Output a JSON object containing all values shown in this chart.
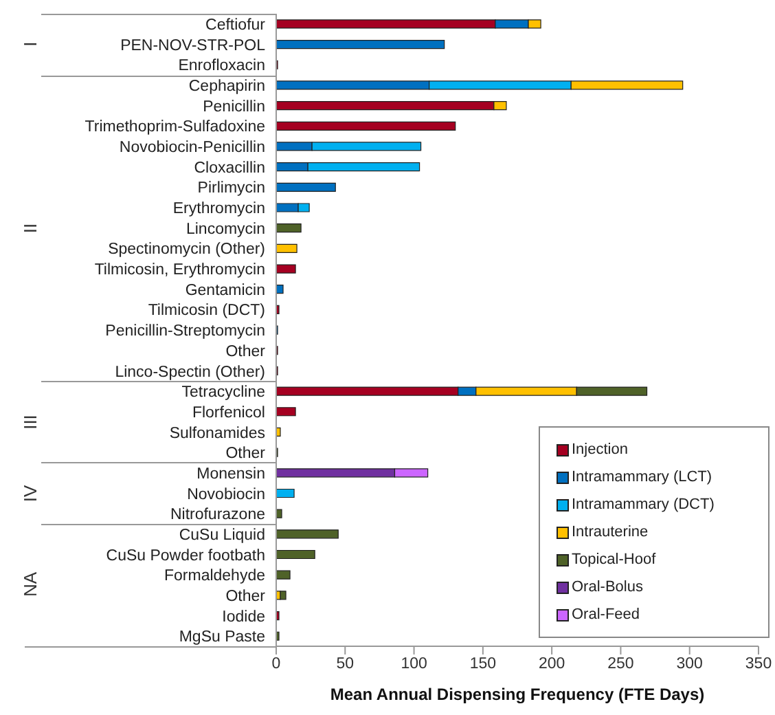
{
  "chart_data": {
    "type": "bar",
    "orientation": "horizontal",
    "stacked": true,
    "xlabel": "Mean Annual Dispensing Frequency (FTE Days)",
    "categories": [
      "Ceftiofur",
      "PEN-NOV-STR-POL",
      "Enrofloxacin",
      "Cephapirin",
      "Penicillin",
      "Trimethoprim-Sulfadoxine",
      "Novobiocin-Penicillin",
      "Cloxacillin",
      "Pirlimycin",
      "Erythromycin",
      "Lincomycin",
      "Spectinomycin (Other)",
      "Tilmicosin, Erythromycin",
      "Gentamicin",
      "Tilmicosin (DCT)",
      "Penicillin-Streptomycin",
      "Other",
      "Linco-Spectin (Other)",
      "Tetracycline",
      "Florfenicol",
      "Sulfonamides",
      "Other",
      "Monensin",
      "Novobiocin",
      "Nitrofurazone",
      "CuSu Liquid",
      "CuSu Powder footbath",
      "Formaldehyde",
      "Other",
      "Iodide",
      "MgSu Paste"
    ],
    "series": [
      {
        "name": "Injection",
        "color": "#a50021",
        "values": [
          159,
          null,
          1,
          null,
          158,
          130,
          null,
          null,
          null,
          null,
          null,
          null,
          14,
          null,
          2,
          null,
          1,
          1,
          132,
          14,
          null,
          null,
          null,
          null,
          null,
          null,
          null,
          null,
          null,
          2,
          null
        ]
      },
      {
        "name": "Intramammary (LCT)",
        "color": "#0070c0",
        "values": [
          24,
          122,
          null,
          111,
          null,
          null,
          26,
          23,
          43,
          16,
          null,
          null,
          null,
          5,
          null,
          1,
          null,
          null,
          13,
          null,
          null,
          null,
          null,
          null,
          null,
          null,
          null,
          null,
          null,
          null,
          null
        ]
      },
      {
        "name": "Intramammary (DCT)",
        "color": "#00b0f0",
        "values": [
          null,
          null,
          null,
          103,
          null,
          null,
          79,
          81,
          null,
          8,
          null,
          null,
          null,
          null,
          null,
          null,
          null,
          null,
          null,
          null,
          null,
          null,
          null,
          13,
          null,
          null,
          null,
          null,
          null,
          null,
          null
        ]
      },
      {
        "name": "Intrauterine",
        "color": "#ffc000",
        "values": [
          9,
          null,
          null,
          81,
          9,
          null,
          null,
          null,
          null,
          null,
          null,
          15,
          null,
          null,
          null,
          null,
          null,
          null,
          73,
          null,
          3,
          null,
          null,
          null,
          null,
          null,
          null,
          null,
          3,
          null,
          null
        ]
      },
      {
        "name": "Topical-Hoof",
        "color": "#4f6228",
        "values": [
          null,
          null,
          null,
          null,
          null,
          null,
          null,
          null,
          null,
          null,
          18,
          null,
          null,
          null,
          null,
          null,
          null,
          null,
          51,
          null,
          null,
          1,
          null,
          null,
          4,
          45,
          28,
          10,
          4,
          null,
          2
        ]
      },
      {
        "name": "Oral-Bolus",
        "color": "#7030a0",
        "values": [
          null,
          null,
          null,
          null,
          null,
          null,
          null,
          null,
          null,
          null,
          null,
          null,
          null,
          null,
          null,
          null,
          null,
          null,
          null,
          null,
          null,
          null,
          86,
          null,
          null,
          null,
          null,
          null,
          null,
          null,
          null
        ]
      },
      {
        "name": "Oral-Feed",
        "color": "#cc66ff",
        "values": [
          null,
          null,
          null,
          null,
          null,
          null,
          null,
          null,
          null,
          null,
          null,
          null,
          null,
          null,
          null,
          null,
          null,
          null,
          null,
          null,
          null,
          null,
          24,
          null,
          null,
          null,
          null,
          null,
          null,
          null,
          null
        ]
      }
    ],
    "xlim": [
      0,
      350
    ],
    "xticks": [
      0,
      50,
      100,
      150,
      200,
      250,
      300,
      350
    ],
    "grid": false,
    "legend": "bottom right",
    "annotations": [
      "I",
      "II",
      "III",
      "IV",
      "NA"
    ]
  }
}
